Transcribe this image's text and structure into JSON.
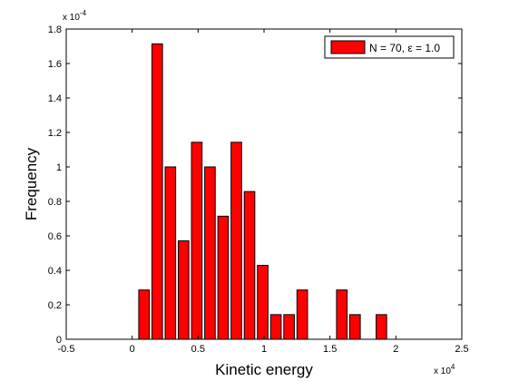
{
  "chart_data": {
    "type": "bar",
    "xlabel": "Kinetic energy",
    "ylabel": "Frequency",
    "xlim": [
      -5000,
      25000
    ],
    "ylim": [
      0,
      0.00018
    ],
    "x_ticks": [
      -5000,
      0,
      5000,
      10000,
      15000,
      20000,
      25000
    ],
    "x_tick_labels": [
      "-0.5",
      "0",
      "0.5",
      "1",
      "1.5",
      "2",
      "2.5"
    ],
    "y_ticks": [
      0,
      2e-05,
      4e-05,
      6e-05,
      8e-05,
      0.0001,
      0.00012,
      0.00014,
      0.00016,
      0.00018
    ],
    "y_tick_labels": [
      "0",
      "0.2",
      "0.4",
      "0.6",
      "0.8",
      "1",
      "1.2",
      "1.4",
      "1.6",
      "1.8"
    ],
    "x_multiplier": {
      "base": "x 10",
      "exp": "4"
    },
    "y_multiplier": {
      "base": "x 10",
      "exp": "-4"
    },
    "bar_color": "#ff0000",
    "bar_width": 800,
    "grid": false,
    "legend_position": "top-right",
    "series": [
      {
        "name": "N = 70, ε = 1.0",
        "x": [
          900,
          1900,
          2900,
          3900,
          4900,
          5900,
          6900,
          7900,
          8900,
          9900,
          10900,
          11900,
          12900,
          13900,
          14900,
          15900,
          16900,
          17900,
          18900
        ],
        "values": [
          2.86e-05,
          0.0001714,
          0.0001,
          5.71e-05,
          0.0001143,
          0.0001,
          7.14e-05,
          0.0001143,
          8.57e-05,
          4.29e-05,
          1.43e-05,
          1.43e-05,
          2.86e-05,
          0,
          0,
          2.86e-05,
          1.43e-05,
          0,
          1.43e-05
        ]
      }
    ]
  }
}
